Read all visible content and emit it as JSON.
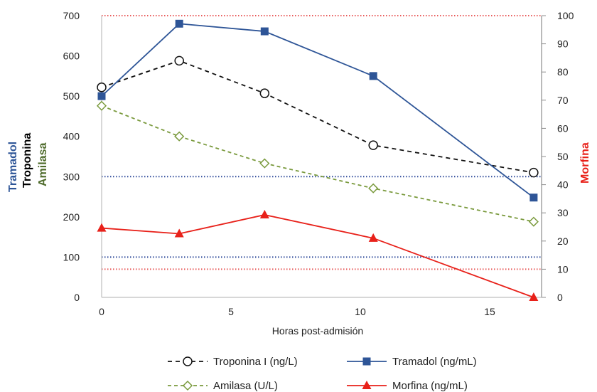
{
  "chart_data": {
    "type": "line",
    "xlabel": "Horas post-admisión",
    "xlim": [
      0,
      17
    ],
    "xticks": [
      0,
      5,
      10,
      15
    ],
    "ylim_left": [
      0,
      700
    ],
    "yticks_left": [
      0,
      100,
      200,
      300,
      400,
      500,
      600,
      700
    ],
    "ylim_right": [
      0,
      100
    ],
    "yticks_right": [
      0,
      10,
      20,
      30,
      40,
      50,
      60,
      70,
      80,
      90,
      100
    ],
    "left_axis_labels": [
      {
        "text": "Tramadol",
        "color": "#2e5597"
      },
      {
        "text": "Troponina",
        "color": "#000000"
      },
      {
        "text": "Amilasa",
        "color": "#4e6b2b"
      }
    ],
    "right_axis_label": {
      "text": "Morfina",
      "color": "#e8211a"
    },
    "reference_lines": [
      {
        "axis": "left",
        "value": 700,
        "color": "#e85a5a"
      },
      {
        "axis": "left",
        "value": 300,
        "color": "#2e4a9a"
      },
      {
        "axis": "left",
        "value": 100,
        "color": "#2e4a9a"
      },
      {
        "axis": "right",
        "value": 10,
        "color": "#e85a5a"
      }
    ],
    "series": [
      {
        "name": "Troponina I (ng/L)",
        "axis": "left",
        "color": "#111111",
        "dash": "6,5",
        "marker": "circle-open",
        "x": [
          0,
          3,
          6.3,
          10.5,
          16.7
        ],
        "y": [
          522,
          588,
          507,
          378,
          310
        ]
      },
      {
        "name": "Tramadol (ng/mL)",
        "axis": "left",
        "color": "#2e5597",
        "dash": "",
        "marker": "square-filled",
        "x": [
          0,
          3,
          6.3,
          10.5,
          16.7
        ],
        "y": [
          500,
          680,
          661,
          550,
          248
        ]
      },
      {
        "name": "Amilasa (U/L)",
        "axis": "left",
        "color": "#7a9a3d",
        "dash": "5,4",
        "marker": "diamond-open",
        "x": [
          0,
          3,
          6.3,
          10.5,
          16.7
        ],
        "y": [
          476,
          400,
          333,
          271,
          188
        ]
      },
      {
        "name": "Morfina (ng/mL)",
        "axis": "right",
        "color": "#e8211a",
        "dash": "",
        "marker": "triangle-filled",
        "x": [
          0,
          3,
          6.3,
          10.5,
          16.7
        ],
        "y": [
          24.6,
          22.6,
          29.3,
          21.0,
          0
        ]
      }
    ],
    "legend": {
      "placement": "bottom"
    }
  }
}
